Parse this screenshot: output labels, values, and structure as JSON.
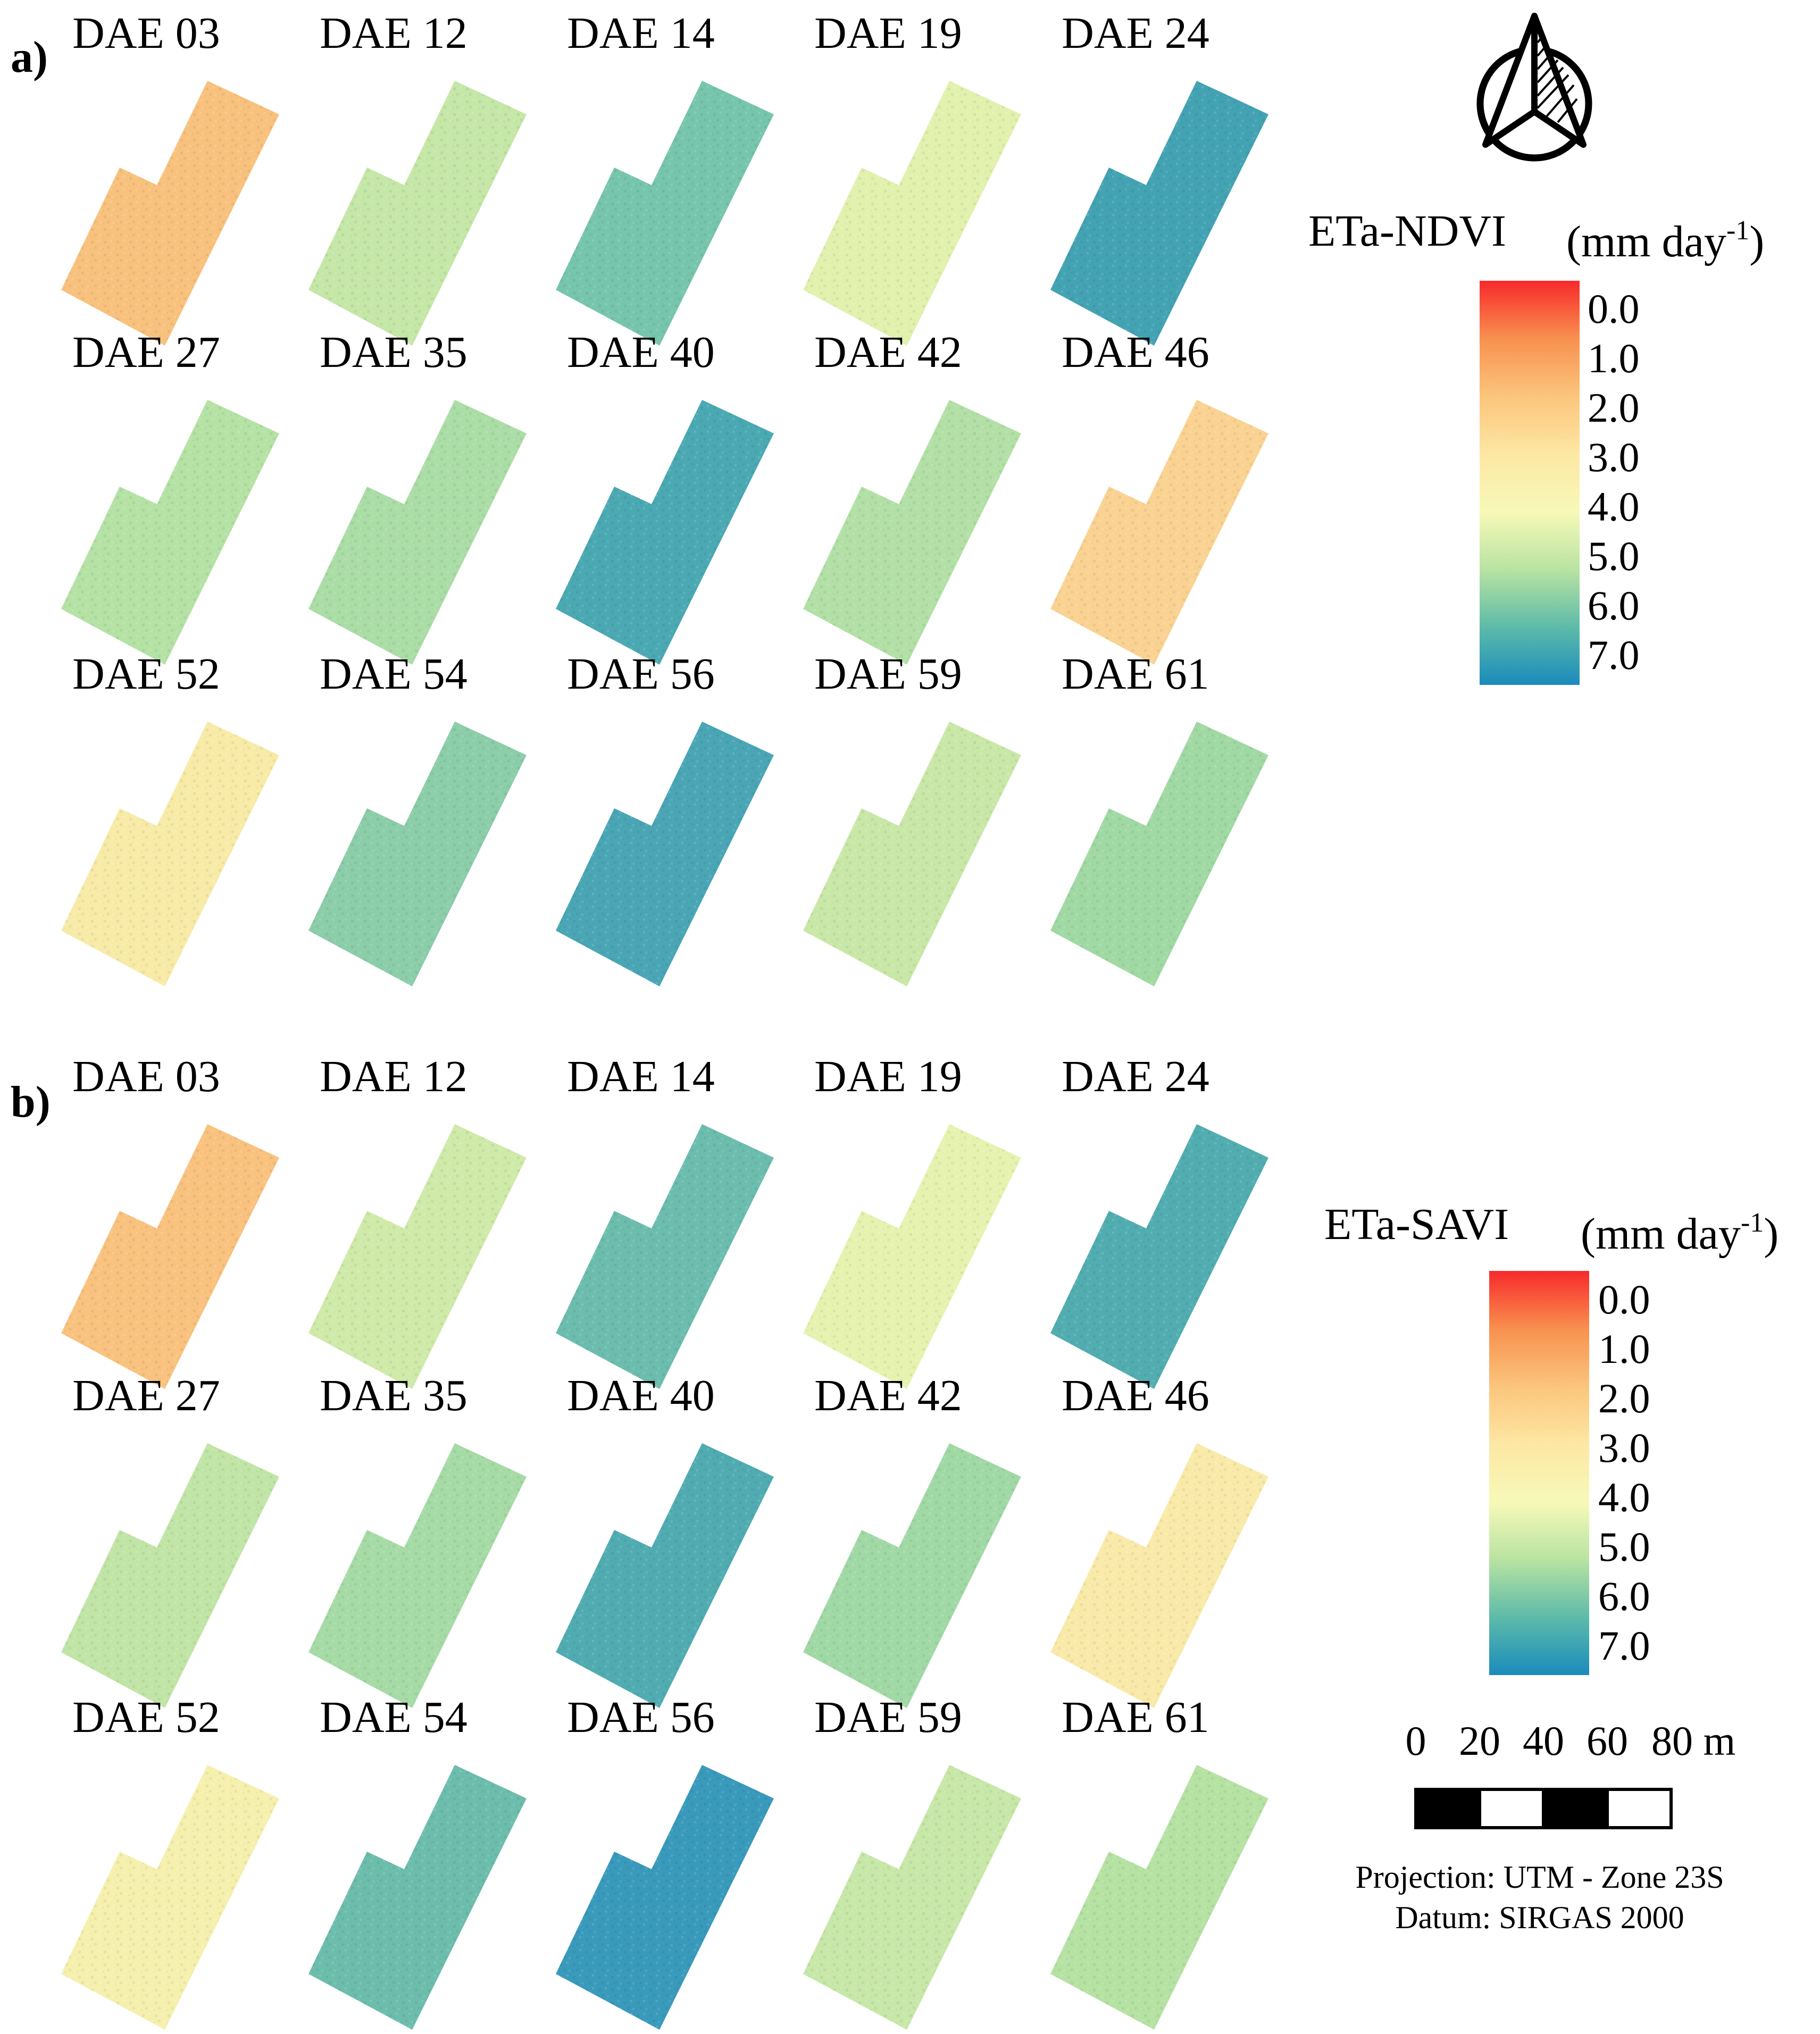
{
  "panels": [
    {
      "letter": "a)",
      "index_label": "ETa-NDVI",
      "unit_prefix": "(mm day",
      "unit_exp": "-1",
      "unit_suffix": ")",
      "maps": [
        {
          "label": "DAE 03",
          "color": "#f8c27e"
        },
        {
          "label": "DAE 12",
          "color": "#c5e7a7"
        },
        {
          "label": "DAE 14",
          "color": "#77c5ad"
        },
        {
          "label": "DAE 19",
          "color": "#e2f1ae"
        },
        {
          "label": "DAE 24",
          "color": "#43a3b3"
        },
        {
          "label": "DAE 27",
          "color": "#b5e2a5"
        },
        {
          "label": "DAE 35",
          "color": "#abdda6"
        },
        {
          "label": "DAE 40",
          "color": "#4ba9b3"
        },
        {
          "label": "DAE 42",
          "color": "#b2e0a6"
        },
        {
          "label": "DAE 46",
          "color": "#fad393"
        },
        {
          "label": "DAE 52",
          "color": "#f8eba8"
        },
        {
          "label": "DAE 54",
          "color": "#8ccdaa"
        },
        {
          "label": "DAE 56",
          "color": "#4aa6b5"
        },
        {
          "label": "DAE 59",
          "color": "#c9e8a8"
        },
        {
          "label": "DAE 61",
          "color": "#a1d9a4"
        }
      ]
    },
    {
      "letter": "b)",
      "index_label": "ETa-SAVI",
      "unit_prefix": "(mm day",
      "unit_exp": "-1",
      "unit_suffix": ")",
      "maps": [
        {
          "label": "DAE 03",
          "color": "#f9c27f"
        },
        {
          "label": "DAE 12",
          "color": "#cfeaa9"
        },
        {
          "label": "DAE 14",
          "color": "#6cbdae"
        },
        {
          "label": "DAE 19",
          "color": "#e6f3b0"
        },
        {
          "label": "DAE 24",
          "color": "#52adb1"
        },
        {
          "label": "DAE 27",
          "color": "#c1e5a6"
        },
        {
          "label": "DAE 35",
          "color": "#a6dba6"
        },
        {
          "label": "DAE 40",
          "color": "#51acb2"
        },
        {
          "label": "DAE 42",
          "color": "#a1d9a6"
        },
        {
          "label": "DAE 46",
          "color": "#faeaaa"
        },
        {
          "label": "DAE 52",
          "color": "#f6f0ae"
        },
        {
          "label": "DAE 54",
          "color": "#6dbdad"
        },
        {
          "label": "DAE 56",
          "color": "#3a9abb"
        },
        {
          "label": "DAE 59",
          "color": "#c7e8a8"
        },
        {
          "label": "DAE 61",
          "color": "#b6e2a4"
        }
      ]
    }
  ],
  "colorbar": {
    "ticks": [
      "0.0",
      "1.0",
      "2.0",
      "3.0",
      "4.0",
      "5.0",
      "6.0",
      "7.0"
    ],
    "stops": [
      "#f72a2b",
      "#f8904f",
      "#fbc57c",
      "#fde7a4",
      "#f7f9b8",
      "#b9e3a2",
      "#5dbba9",
      "#1a8bbc"
    ]
  },
  "scale_bar": {
    "labels": [
      "0",
      "20",
      "40",
      "60",
      "80 m"
    ]
  },
  "projection_text": "Projection: UTM - Zone 23S",
  "datum_text": "Datum: SIRGAS 2000"
}
